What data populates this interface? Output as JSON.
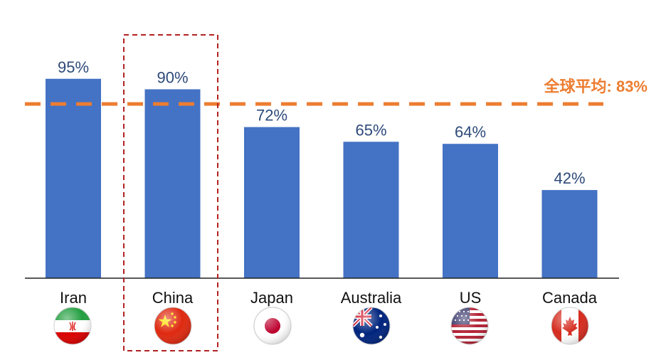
{
  "chart_data": {
    "type": "bar",
    "title": "",
    "xlabel": "",
    "ylabel": "",
    "categories": [
      "Iran",
      "China",
      "Japan",
      "Australia",
      "US",
      "Canada"
    ],
    "values": [
      95,
      90,
      72,
      65,
      64,
      42
    ],
    "value_labels": [
      "95%",
      "90%",
      "72%",
      "65%",
      "64%",
      "42%"
    ],
    "ylim": [
      0,
      100
    ],
    "grid": false,
    "bar_color": "#4472c4",
    "reference_line": {
      "value": 83,
      "label": "全球平均: 83%",
      "color": "#ed7d31",
      "style": "dashed"
    },
    "highlight": {
      "category": "China",
      "color": "#b22222",
      "style": "dashed-box"
    },
    "flag_icons": [
      "iran-flag-icon",
      "china-flag-icon",
      "japan-flag-icon",
      "australia-flag-icon",
      "us-flag-icon",
      "canada-flag-icon"
    ]
  }
}
